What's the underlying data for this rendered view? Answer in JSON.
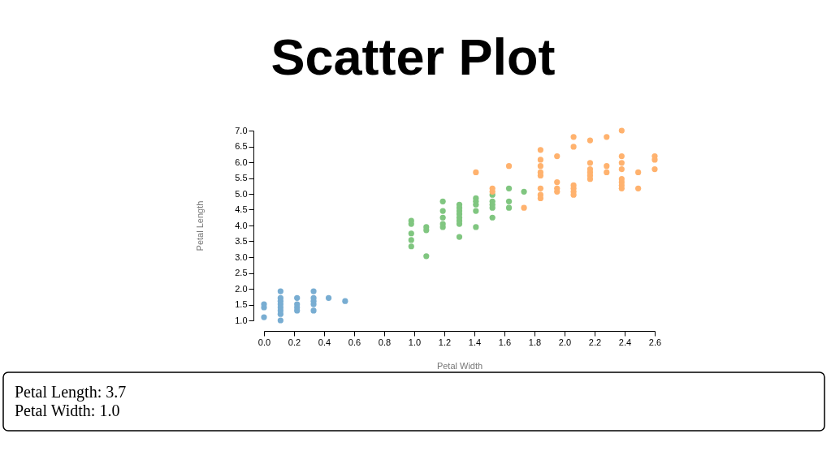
{
  "chart_data": {
    "type": "scatter",
    "title": "Scatter Plot",
    "xlabel": "Petal Width",
    "ylabel": "Petal Length",
    "marker": "circle",
    "xlim": [
      0,
      2.6
    ],
    "ylim": [
      1,
      7
    ],
    "xticks": [
      {
        "value": 0,
        "label": "0.0"
      },
      0.2,
      0.4,
      0.6,
      0.8,
      {
        "value": 1,
        "label": "1.0"
      },
      1.2,
      1.4,
      1.6,
      1.8,
      {
        "value": 2,
        "label": "2.0"
      },
      2.2,
      2.4,
      2.6
    ],
    "yticks": [
      {
        "value": 1,
        "label": "1.0"
      },
      1.5,
      {
        "value": 2,
        "label": "2.0"
      },
      2.5,
      {
        "value": 3,
        "label": "3.0"
      },
      3.5,
      {
        "value": 4,
        "label": "4.0"
      },
      4.5,
      {
        "value": 5,
        "label": "5.0"
      },
      5.5,
      {
        "value": 6,
        "label": "6.0"
      },
      6.5,
      {
        "value": 7,
        "label": "7.0"
      }
    ],
    "series": [
      {
        "color": "#78add2",
        "x": [
          0,
          0,
          0,
          0.11,
          0.11,
          0.11,
          0.11,
          0.11,
          0.11,
          0.11,
          0.11,
          0.22,
          0.22,
          0.22,
          0.22,
          0.33,
          0.33,
          0.33,
          0.33,
          0.33,
          0.43,
          0.54
        ],
        "values": [
          1.51,
          1.41,
          1.1,
          1.92,
          1.71,
          1.61,
          1.51,
          1.41,
          1.31,
          1.2,
          1.0,
          1.71,
          1.51,
          1.41,
          1.31,
          1.92,
          1.71,
          1.61,
          1.51,
          1.31,
          1.71,
          1.61
        ]
      },
      {
        "color": "#80c680",
        "x": [
          0.98,
          0.98,
          0.98,
          0.98,
          0.98,
          1.08,
          1.08,
          1.08,
          1.19,
          1.19,
          1.19,
          1.19,
          1.19,
          1.3,
          1.3,
          1.3,
          1.3,
          1.3,
          1.3,
          1.3,
          1.3,
          1.41,
          1.41,
          1.41,
          1.41,
          1.41,
          1.52,
          1.52,
          1.52,
          1.52,
          1.52,
          1.63,
          1.63,
          1.63,
          1.73
        ],
        "values": [
          4.15,
          4.05,
          3.75,
          3.54,
          3.34,
          3.95,
          3.85,
          3.03,
          4.76,
          4.46,
          4.25,
          4.05,
          3.95,
          4.66,
          4.56,
          4.46,
          4.36,
          4.25,
          4.15,
          4.05,
          3.64,
          4.86,
          4.76,
          4.66,
          4.46,
          3.95,
          4.97,
          4.76,
          4.66,
          4.56,
          4.25,
          5.17,
          4.76,
          4.56,
          5.07
        ]
      },
      {
        "color": "#ffb26e",
        "x": [
          1.41,
          1.52,
          1.52,
          1.63,
          1.73,
          1.84,
          1.84,
          1.84,
          1.84,
          1.84,
          1.84,
          1.84,
          1.84,
          1.95,
          1.95,
          1.95,
          1.95,
          2.06,
          2.06,
          2.06,
          2.06,
          2.06,
          2.06,
          2.17,
          2.17,
          2.17,
          2.17,
          2.17,
          2.17,
          2.28,
          2.28,
          2.28,
          2.38,
          2.38,
          2.38,
          2.38,
          2.38,
          2.38,
          2.38,
          2.38,
          2.49,
          2.49,
          2.6,
          2.6,
          2.6
        ],
        "values": [
          5.68,
          5.17,
          5.07,
          5.88,
          4.56,
          6.39,
          6.08,
          5.88,
          5.68,
          5.58,
          5.17,
          4.97,
          4.86,
          6.19,
          5.37,
          5.17,
          5.07,
          6.8,
          6.49,
          5.27,
          5.17,
          5.07,
          4.97,
          6.69,
          5.98,
          5.78,
          5.68,
          5.58,
          5.47,
          6.8,
          5.88,
          5.68,
          7.0,
          6.19,
          5.98,
          5.78,
          5.47,
          5.37,
          5.27,
          5.17,
          5.68,
          5.17,
          6.19,
          6.08,
          5.78
        ]
      }
    ],
    "annotations": [
      "Petal Length: 3.7",
      "Petal Width: 1.0"
    ]
  }
}
